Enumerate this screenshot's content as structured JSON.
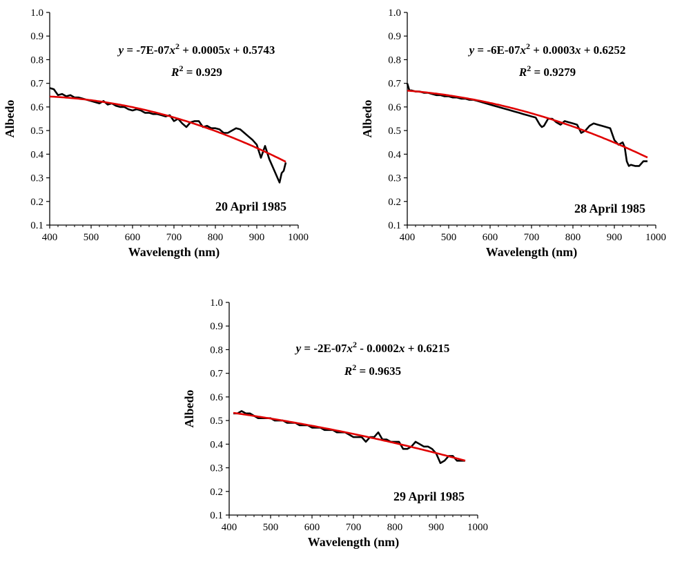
{
  "chart_data": [
    {
      "type": "line",
      "xlabel": "Wavelength (nm)",
      "ylabel": "Albedo",
      "xlim": [
        400,
        1000
      ],
      "ylim": [
        0.1,
        1.0
      ],
      "xticks": [
        "400",
        "500",
        "600",
        "700",
        "800",
        "900",
        "1000"
      ],
      "yticks": [
        "0.1",
        "0.2",
        "0.3",
        "0.4",
        "0.5",
        "0.6",
        "0.7",
        "0.8",
        "0.9",
        "1.0"
      ],
      "grid": false,
      "equation": "y = -7E-07x² + 0.0005x + 0.5743",
      "r_squared": "R² = 0.929",
      "annotation": "20 April 1985",
      "series": [
        {
          "color": "#000000",
          "x": [
            400,
            410,
            420,
            430,
            440,
            450,
            460,
            470,
            480,
            490,
            500,
            510,
            520,
            530,
            540,
            550,
            560,
            570,
            580,
            590,
            600,
            610,
            620,
            630,
            640,
            650,
            660,
            670,
            680,
            690,
            700,
            710,
            720,
            730,
            740,
            750,
            760,
            770,
            780,
            790,
            800,
            810,
            820,
            830,
            840,
            850,
            860,
            870,
            880,
            890,
            900,
            910,
            920,
            930,
            940,
            950,
            955,
            960,
            965,
            970
          ],
          "y": [
            0.68,
            0.675,
            0.65,
            0.655,
            0.645,
            0.65,
            0.64,
            0.64,
            0.635,
            0.63,
            0.625,
            0.62,
            0.615,
            0.625,
            0.61,
            0.615,
            0.605,
            0.6,
            0.6,
            0.59,
            0.585,
            0.59,
            0.585,
            0.575,
            0.575,
            0.57,
            0.57,
            0.565,
            0.56,
            0.565,
            0.54,
            0.55,
            0.53,
            0.515,
            0.535,
            0.54,
            0.54,
            0.515,
            0.52,
            0.51,
            0.51,
            0.505,
            0.49,
            0.49,
            0.5,
            0.51,
            0.505,
            0.49,
            0.475,
            0.46,
            0.44,
            0.385,
            0.435,
            0.38,
            0.34,
            0.3,
            0.28,
            0.32,
            0.33,
            0.365
          ]
        },
        {
          "color": "#e00000",
          "fit": "poly2",
          "x": [
            400,
            970
          ],
          "y": [
            0.644,
            0.368
          ]
        }
      ]
    },
    {
      "type": "line",
      "xlabel": "Wavelength (nm)",
      "ylabel": "Albedo",
      "xlim": [
        400,
        1000
      ],
      "ylim": [
        0.1,
        1.0
      ],
      "xticks": [
        "400",
        "500",
        "600",
        "700",
        "800",
        "900",
        "1000"
      ],
      "yticks": [
        "0.1",
        "0.2",
        "0.3",
        "0.4",
        "0.5",
        "0.6",
        "0.7",
        "0.8",
        "0.9",
        "1.0"
      ],
      "grid": false,
      "equation": "y = -6E-07x² + 0.0003x + 0.6252",
      "r_squared": "R² = 0.9279",
      "annotation": "28 April 1985",
      "series": [
        {
          "color": "#000000",
          "x": [
            400,
            405,
            410,
            420,
            430,
            440,
            450,
            460,
            470,
            480,
            490,
            500,
            510,
            520,
            530,
            540,
            550,
            560,
            570,
            580,
            590,
            600,
            610,
            620,
            630,
            640,
            650,
            660,
            670,
            680,
            690,
            700,
            710,
            720,
            725,
            730,
            740,
            750,
            760,
            770,
            780,
            790,
            800,
            810,
            820,
            830,
            840,
            850,
            860,
            870,
            880,
            890,
            900,
            910,
            920,
            925,
            930,
            935,
            940,
            950,
            960,
            970,
            980
          ],
          "y": [
            0.7,
            0.67,
            0.67,
            0.665,
            0.665,
            0.66,
            0.66,
            0.655,
            0.65,
            0.65,
            0.645,
            0.645,
            0.64,
            0.64,
            0.635,
            0.635,
            0.63,
            0.63,
            0.625,
            0.62,
            0.615,
            0.61,
            0.605,
            0.6,
            0.595,
            0.59,
            0.585,
            0.58,
            0.575,
            0.57,
            0.565,
            0.56,
            0.555,
            0.525,
            0.515,
            0.52,
            0.55,
            0.55,
            0.535,
            0.525,
            0.54,
            0.535,
            0.53,
            0.525,
            0.49,
            0.5,
            0.52,
            0.53,
            0.525,
            0.52,
            0.515,
            0.51,
            0.46,
            0.44,
            0.45,
            0.43,
            0.37,
            0.35,
            0.355,
            0.35,
            0.35,
            0.37,
            0.37
          ]
        },
        {
          "color": "#e00000",
          "fit": "poly2",
          "x": [
            400,
            980
          ],
          "y": [
            0.669,
            0.386
          ]
        }
      ]
    },
    {
      "type": "line",
      "xlabel": "Wavelength (nm)",
      "ylabel": "Albedo",
      "xlim": [
        400,
        1000
      ],
      "ylim": [
        0.1,
        1.0
      ],
      "xticks": [
        "400",
        "500",
        "600",
        "700",
        "800",
        "900",
        "1000"
      ],
      "yticks": [
        "0.1",
        "0.2",
        "0.3",
        "0.4",
        "0.5",
        "0.6",
        "0.7",
        "0.8",
        "0.9",
        "1.0"
      ],
      "grid": false,
      "equation": "y = -2E-07x² - 0.0002x + 0.6215",
      "r_squared": "R² = 0.9635",
      "annotation": "29 April 1985",
      "series": [
        {
          "color": "#000000",
          "x": [
            410,
            420,
            430,
            440,
            450,
            460,
            470,
            480,
            490,
            500,
            510,
            520,
            530,
            540,
            550,
            560,
            570,
            580,
            590,
            600,
            610,
            620,
            630,
            640,
            650,
            660,
            670,
            680,
            690,
            700,
            710,
            720,
            730,
            740,
            750,
            760,
            770,
            780,
            790,
            800,
            810,
            820,
            830,
            840,
            850,
            860,
            870,
            880,
            890,
            900,
            910,
            920,
            930,
            940,
            950,
            960,
            970
          ],
          "y": [
            0.53,
            0.53,
            0.54,
            0.53,
            0.53,
            0.52,
            0.51,
            0.51,
            0.51,
            0.51,
            0.5,
            0.5,
            0.5,
            0.49,
            0.49,
            0.49,
            0.48,
            0.48,
            0.48,
            0.47,
            0.47,
            0.47,
            0.46,
            0.46,
            0.46,
            0.45,
            0.45,
            0.45,
            0.44,
            0.43,
            0.43,
            0.43,
            0.41,
            0.43,
            0.43,
            0.45,
            0.42,
            0.42,
            0.41,
            0.41,
            0.41,
            0.38,
            0.38,
            0.39,
            0.41,
            0.4,
            0.39,
            0.39,
            0.38,
            0.36,
            0.32,
            0.33,
            0.35,
            0.35,
            0.33,
            0.33,
            0.33
          ]
        },
        {
          "color": "#e00000",
          "fit": "poly2",
          "x": [
            410,
            970
          ],
          "y": [
            0.5325,
            0.3301
          ]
        }
      ]
    }
  ]
}
